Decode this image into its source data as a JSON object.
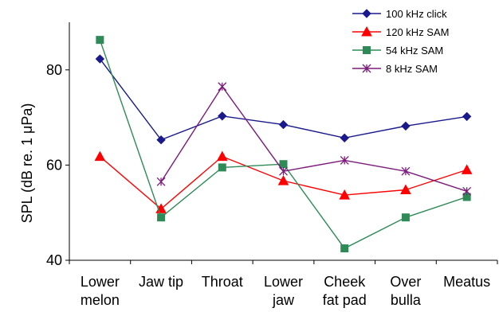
{
  "chart_data": {
    "type": "line",
    "title": "",
    "xlabel": "",
    "ylabel": "SPL (dB re. 1 μPa)",
    "ylim": [
      40,
      90
    ],
    "yticks": [
      40,
      60,
      80
    ],
    "categories": [
      [
        "Lower",
        "melon"
      ],
      [
        "Jaw tip"
      ],
      [
        "Throat"
      ],
      [
        "Lower",
        "jaw"
      ],
      [
        "Cheek",
        "fat pad"
      ],
      [
        "Over",
        "bulla"
      ],
      [
        "Meatus"
      ]
    ],
    "grid": false,
    "legend_position": "top-right",
    "series": [
      {
        "name": "100 kHz click",
        "color": "#1a1a8c",
        "marker": "diamond",
        "values": [
          82.3,
          65.3,
          70.3,
          68.5,
          65.7,
          68.2,
          70.2
        ]
      },
      {
        "name": "120 kHz SAM",
        "color": "#ff0000",
        "marker": "triangle",
        "values": [
          61.8,
          50.8,
          61.8,
          56.7,
          53.7,
          54.8,
          59.0
        ]
      },
      {
        "name": "54 kHz SAM",
        "color": "#2e8b57",
        "marker": "square",
        "values": [
          86.3,
          49.0,
          59.5,
          60.2,
          42.5,
          49.0,
          53.3
        ]
      },
      {
        "name": "8 kHz SAM",
        "color": "#7b1a7b",
        "marker": "asterisk",
        "values": [
          null,
          56.5,
          76.5,
          58.7,
          61.0,
          58.7,
          54.5
        ]
      }
    ]
  }
}
